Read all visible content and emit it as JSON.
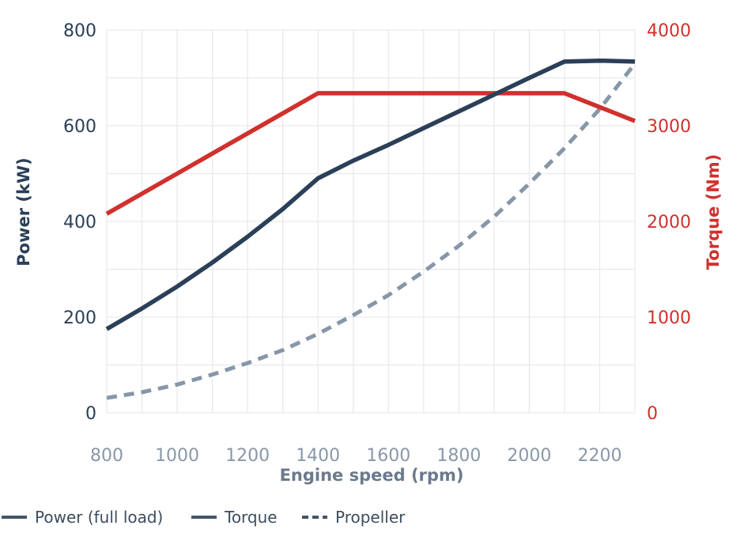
{
  "chart_data": {
    "type": "line",
    "title": "",
    "xlabel": "Engine speed (rpm)",
    "ylabel_left": "Power (kW)",
    "ylabel_right": "Torque (Nm)",
    "xlim": [
      800,
      2300
    ],
    "ylim_left": [
      0,
      800
    ],
    "ylim_right": [
      0,
      4000
    ],
    "x_ticks": [
      800,
      1000,
      1200,
      1400,
      1600,
      1800,
      2000,
      2200
    ],
    "y_left_ticks": [
      0,
      200,
      400,
      600,
      800
    ],
    "y_right_ticks": [
      0,
      1000,
      2000,
      3000,
      4000
    ],
    "grid": true,
    "legend_position": "bottom-left",
    "colors": {
      "power": "#2b3f58",
      "torque": "#d0312d",
      "propeller": "#8796a8",
      "grid": "#e6e9ee",
      "x_tick_label": "#8a97a8",
      "x_axis_title": "#6b7a8c",
      "legend_text": "#3d4d5f",
      "legend_swatch": "#45556a"
    },
    "series": [
      {
        "key": "power",
        "name": "Power (full load)",
        "axis": "left",
        "style": "solid",
        "x": [
          800,
          900,
          1000,
          1100,
          1200,
          1300,
          1400,
          1500,
          1600,
          1700,
          1800,
          1900,
          2000,
          2100,
          2200,
          2300
        ],
        "values": [
          175,
          218,
          264,
          314,
          368,
          426,
          490,
          527,
          560,
          595,
          630,
          665,
          700,
          734,
          736,
          734
        ]
      },
      {
        "key": "torque",
        "name": "Torque",
        "axis": "right",
        "style": "solid",
        "x": [
          800,
          1400,
          2100,
          2300
        ],
        "values": [
          2080,
          3340,
          3340,
          3050
        ]
      },
      {
        "key": "propeller",
        "name": "Propeller",
        "axis": "left",
        "style": "dashed",
        "x": [
          800,
          900,
          1000,
          1100,
          1200,
          1300,
          1400,
          1500,
          1600,
          1700,
          1800,
          1900,
          2000,
          2100,
          2200,
          2300
        ],
        "values": [
          31,
          43,
          59,
          80,
          104,
          131,
          165,
          204,
          246,
          295,
          349,
          410,
          479,
          553,
          635,
          730
        ]
      }
    ],
    "legend": [
      {
        "label": "Power (full load)",
        "style": "solid"
      },
      {
        "label": "Torque",
        "style": "solid"
      },
      {
        "label": "Propeller",
        "style": "dashed"
      }
    ]
  }
}
